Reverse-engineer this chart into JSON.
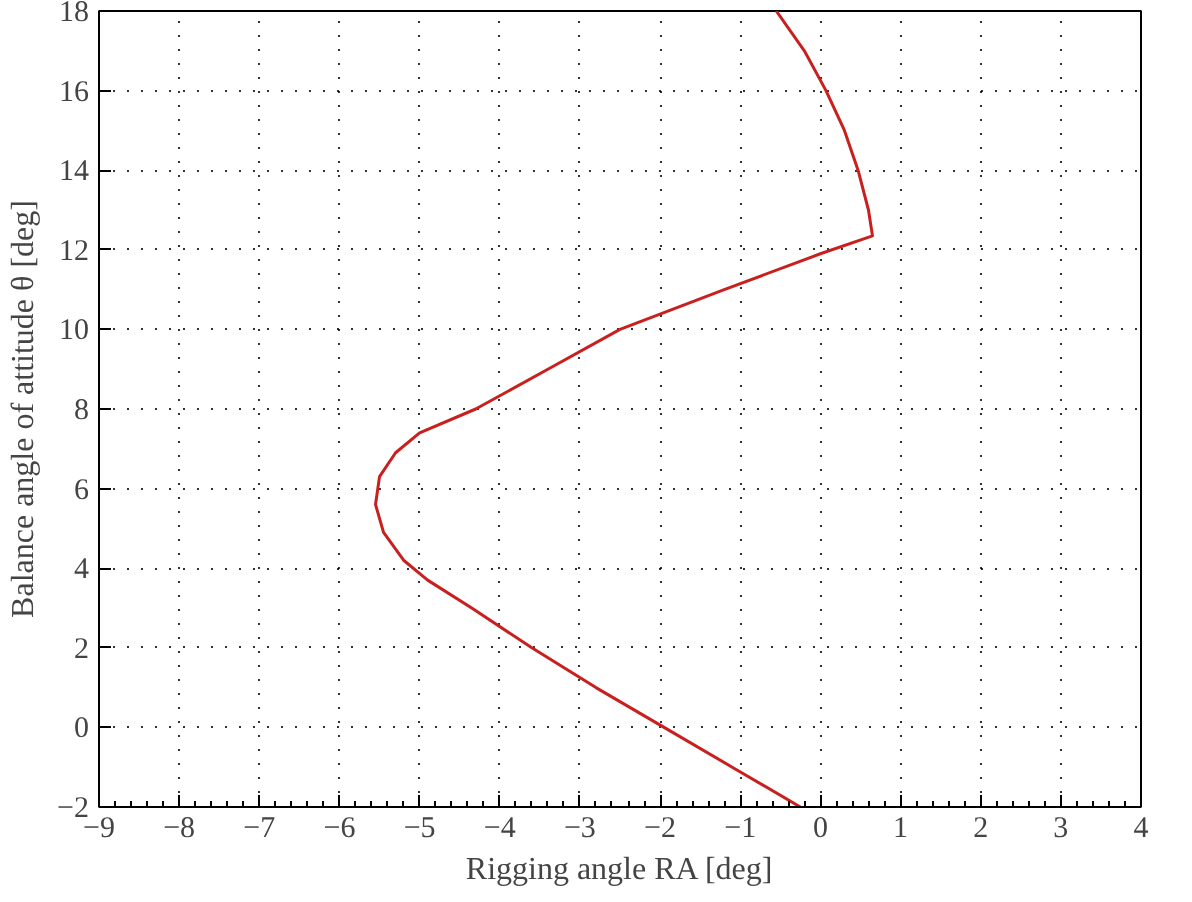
{
  "chart_data": {
    "type": "line",
    "xlabel": "Rigging angle RA [deg]",
    "ylabel": "Balance angle of attitude θ [deg]",
    "xlim": [
      -9,
      4
    ],
    "ylim": [
      -2,
      18
    ],
    "xticks": [
      {
        "value": -9,
        "label": "−9"
      },
      {
        "value": -8,
        "label": "−8"
      },
      {
        "value": -7,
        "label": "−7"
      },
      {
        "value": -6,
        "label": "−6"
      },
      {
        "value": -5,
        "label": "−5"
      },
      {
        "value": -4,
        "label": "−4"
      },
      {
        "value": -3,
        "label": "−3"
      },
      {
        "value": -2,
        "label": "−2"
      },
      {
        "value": -1,
        "label": "−1"
      },
      0,
      1,
      2,
      3,
      4
    ],
    "yticks": [
      {
        "value": -2,
        "label": "−2"
      },
      0,
      2,
      4,
      6,
      8,
      10,
      12,
      14,
      16,
      18
    ],
    "grid": true,
    "line_style": "solid",
    "marker": "none",
    "series": [
      {
        "color": "#c8201e",
        "x": [
          -0.25,
          -1.1,
          -1.95,
          -2.8,
          -3.6,
          -4.35,
          -4.9,
          -5.2,
          -5.45,
          -5.55,
          -5.5,
          -5.3,
          -5.0,
          -4.3,
          -3.4,
          -2.5,
          -1.2,
          0.0,
          0.65,
          0.6,
          0.47,
          0.3,
          0.07,
          -0.2,
          -0.55
        ],
        "values": [
          -2,
          -1,
          0,
          1,
          2,
          3,
          3.7,
          4.2,
          4.9,
          5.6,
          6.3,
          6.9,
          7.4,
          8,
          9,
          10,
          11,
          11.9,
          12.35,
          13,
          14,
          15,
          16,
          17,
          18
        ]
      }
    ]
  }
}
